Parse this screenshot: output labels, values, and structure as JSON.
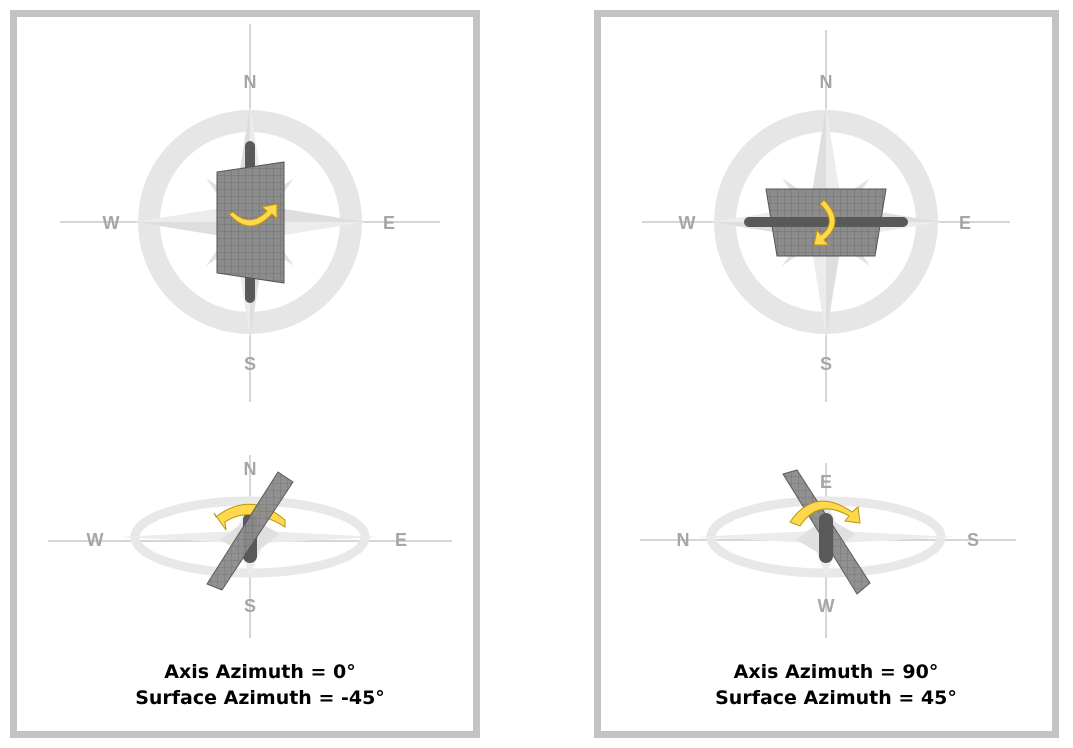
{
  "left_panel": {
    "top_compass": {
      "north": "N",
      "south": "S",
      "west": "W",
      "east": "E"
    },
    "bottom_compass": {
      "north": "N",
      "south": "S",
      "west": "W",
      "east": "E"
    },
    "caption": {
      "line1": "Axis Azimuth = 0°",
      "line2": "Surface Azimuth = -45°"
    }
  },
  "right_panel": {
    "top_compass": {
      "north": "N",
      "south": "S",
      "west": "W",
      "east": "E"
    },
    "bottom_compass": {
      "top": "E",
      "bottom": "W",
      "left": "N",
      "right": "S"
    },
    "caption": {
      "line1": "Axis Azimuth = 90°",
      "line2": "Surface Azimuth = 45°"
    }
  },
  "colors": {
    "panel_border": "#c3c3c3",
    "compass_rose": "#e6e6e6",
    "compass_lines": "#c8c8c8",
    "direction_labels": "#a6a6a6",
    "panel_grid": "#7f7f7f",
    "torque_tube": "#595959",
    "rotation_arrow": "#ffd84d"
  }
}
